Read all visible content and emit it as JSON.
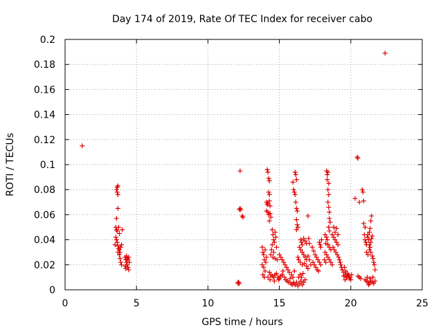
{
  "chart_data": {
    "type": "scatter",
    "title": "Day 174 of 2019, Rate Of TEC Index for receiver cabo",
    "xlabel": "GPS time / hours",
    "ylabel": "ROTI / TECUs",
    "xlim": [
      0,
      25
    ],
    "ylim": [
      0,
      0.2
    ],
    "x_ticks": [
      "0",
      "5",
      "10",
      "15",
      "20",
      "25"
    ],
    "y_ticks": [
      "0",
      "0.02",
      "0.04",
      "0.06",
      "0.08",
      "0.1",
      "0.12",
      "0.14",
      "0.16",
      "0.18",
      "0.2"
    ],
    "grid": true,
    "marker": "+",
    "color": "#e00000",
    "series": [
      {
        "points": [
          [
            1.2,
            0.115
          ],
          [
            3.6,
            0.08
          ],
          [
            3.65,
            0.082
          ],
          [
            3.7,
            0.083
          ],
          [
            3.65,
            0.078
          ],
          [
            3.7,
            0.076
          ],
          [
            3.7,
            0.065
          ],
          [
            3.6,
            0.057
          ],
          [
            3.55,
            0.05
          ],
          [
            3.6,
            0.048
          ],
          [
            3.65,
            0.047
          ],
          [
            3.55,
            0.042
          ],
          [
            3.6,
            0.04
          ],
          [
            3.65,
            0.038
          ],
          [
            3.5,
            0.036
          ],
          [
            3.7,
            0.035
          ],
          [
            3.75,
            0.033
          ],
          [
            3.8,
            0.032
          ],
          [
            3.7,
            0.03
          ],
          [
            3.8,
            0.028
          ],
          [
            3.85,
            0.03
          ],
          [
            3.9,
            0.034
          ],
          [
            3.95,
            0.036
          ],
          [
            4.0,
            0.048
          ],
          [
            3.85,
            0.025
          ],
          [
            3.9,
            0.022
          ],
          [
            3.95,
            0.02
          ],
          [
            3.75,
            0.05
          ],
          [
            3.8,
            0.045
          ],
          [
            4.2,
            0.026
          ],
          [
            4.25,
            0.024
          ],
          [
            4.3,
            0.022
          ],
          [
            4.35,
            0.02
          ],
          [
            4.4,
            0.018
          ],
          [
            4.45,
            0.016
          ],
          [
            4.5,
            0.022
          ],
          [
            4.4,
            0.024
          ],
          [
            4.3,
            0.027
          ],
          [
            4.2,
            0.019
          ],
          [
            4.25,
            0.017
          ],
          [
            4.35,
            0.025
          ],
          [
            4.45,
            0.026
          ],
          [
            12.1,
            0.005
          ],
          [
            12.15,
            0.006
          ],
          [
            12.2,
            0.005
          ],
          [
            12.1,
            0.006
          ],
          [
            12.2,
            0.064
          ],
          [
            12.25,
            0.065
          ],
          [
            12.3,
            0.064
          ],
          [
            12.25,
            0.095
          ],
          [
            12.4,
            0.059
          ],
          [
            12.45,
            0.058
          ],
          [
            13.8,
            0.034
          ],
          [
            13.85,
            0.03
          ],
          [
            13.9,
            0.028
          ],
          [
            13.95,
            0.024
          ],
          [
            13.8,
            0.02
          ],
          [
            13.9,
            0.018
          ],
          [
            14.0,
            0.015
          ],
          [
            14.05,
            0.022
          ],
          [
            14.1,
            0.026
          ],
          [
            14.0,
            0.032
          ],
          [
            13.85,
            0.012
          ],
          [
            13.95,
            0.01
          ],
          [
            14.15,
            0.096
          ],
          [
            14.2,
            0.094
          ],
          [
            14.25,
            0.089
          ],
          [
            14.3,
            0.087
          ],
          [
            14.25,
            0.078
          ],
          [
            14.3,
            0.076
          ],
          [
            14.1,
            0.07
          ],
          [
            14.15,
            0.068
          ],
          [
            14.2,
            0.069
          ],
          [
            14.3,
            0.071
          ],
          [
            14.35,
            0.067
          ],
          [
            14.1,
            0.063
          ],
          [
            14.2,
            0.062
          ],
          [
            14.25,
            0.06
          ],
          [
            14.35,
            0.061
          ],
          [
            14.4,
            0.058
          ],
          [
            14.3,
            0.055
          ],
          [
            14.5,
            0.048
          ],
          [
            14.55,
            0.044
          ],
          [
            14.6,
            0.04
          ],
          [
            14.5,
            0.036
          ],
          [
            14.65,
            0.038
          ],
          [
            14.7,
            0.046
          ],
          [
            14.75,
            0.042
          ],
          [
            14.45,
            0.032
          ],
          [
            14.6,
            0.03
          ],
          [
            14.8,
            0.034
          ],
          [
            14.4,
            0.028
          ],
          [
            14.55,
            0.026
          ],
          [
            14.7,
            0.025
          ],
          [
            14.85,
            0.024
          ],
          [
            14.3,
            0.014
          ],
          [
            14.4,
            0.012
          ],
          [
            14.5,
            0.011
          ],
          [
            14.6,
            0.01
          ],
          [
            14.7,
            0.012
          ],
          [
            14.8,
            0.013
          ],
          [
            14.9,
            0.01
          ],
          [
            15.0,
            0.009
          ],
          [
            15.1,
            0.011
          ],
          [
            15.2,
            0.012
          ],
          [
            14.2,
            0.01
          ],
          [
            14.35,
            0.008
          ],
          [
            14.65,
            0.007
          ],
          [
            14.95,
            0.008
          ],
          [
            15.0,
            0.028
          ],
          [
            15.1,
            0.026
          ],
          [
            15.2,
            0.024
          ],
          [
            15.3,
            0.022
          ],
          [
            15.4,
            0.02
          ],
          [
            15.5,
            0.018
          ],
          [
            15.6,
            0.016
          ],
          [
            15.7,
            0.014
          ],
          [
            15.35,
            0.01
          ],
          [
            15.45,
            0.008
          ],
          [
            15.55,
            0.007
          ],
          [
            15.65,
            0.006
          ],
          [
            15.75,
            0.009
          ],
          [
            15.85,
            0.012
          ],
          [
            15.25,
            0.015
          ],
          [
            15.8,
            0.005
          ],
          [
            15.9,
            0.004
          ],
          [
            16.0,
            0.006
          ],
          [
            15.95,
            0.01
          ],
          [
            16.05,
            0.015
          ],
          [
            15.95,
            0.086
          ],
          [
            16.0,
            0.08
          ],
          [
            16.05,
            0.078
          ],
          [
            16.1,
            0.094
          ],
          [
            16.15,
            0.092
          ],
          [
            16.2,
            0.088
          ],
          [
            16.1,
            0.076
          ],
          [
            16.15,
            0.07
          ],
          [
            16.2,
            0.065
          ],
          [
            16.25,
            0.063
          ],
          [
            16.2,
            0.056
          ],
          [
            16.25,
            0.052
          ],
          [
            16.3,
            0.05
          ],
          [
            16.2,
            0.048
          ],
          [
            16.0,
            0.005
          ],
          [
            16.1,
            0.004
          ],
          [
            16.2,
            0.006
          ],
          [
            16.3,
            0.003
          ],
          [
            16.4,
            0.005
          ],
          [
            16.5,
            0.007
          ],
          [
            16.6,
            0.004
          ],
          [
            16.7,
            0.006
          ],
          [
            16.8,
            0.008
          ],
          [
            16.35,
            0.01
          ],
          [
            16.45,
            0.012
          ],
          [
            16.55,
            0.01
          ],
          [
            16.65,
            0.013
          ],
          [
            16.5,
            0.04
          ],
          [
            16.55,
            0.038
          ],
          [
            16.6,
            0.036
          ],
          [
            16.7,
            0.041
          ],
          [
            16.8,
            0.039
          ],
          [
            16.9,
            0.037
          ],
          [
            16.4,
            0.034
          ],
          [
            16.5,
            0.032
          ],
          [
            16.6,
            0.03
          ],
          [
            16.7,
            0.028
          ],
          [
            16.8,
            0.026
          ],
          [
            16.9,
            0.024
          ],
          [
            16.45,
            0.022
          ],
          [
            16.6,
            0.02
          ],
          [
            16.75,
            0.021
          ],
          [
            16.9,
            0.019
          ],
          [
            17.0,
            0.027
          ],
          [
            17.1,
            0.024
          ],
          [
            17.2,
            0.02
          ],
          [
            17.0,
            0.017
          ],
          [
            16.3,
            0.026
          ],
          [
            16.35,
            0.024
          ],
          [
            17.0,
            0.059
          ],
          [
            17.05,
            0.041
          ],
          [
            17.1,
            0.037
          ],
          [
            17.3,
            0.034
          ],
          [
            17.4,
            0.031
          ],
          [
            17.5,
            0.028
          ],
          [
            17.6,
            0.026
          ],
          [
            17.7,
            0.024
          ],
          [
            17.8,
            0.022
          ],
          [
            17.9,
            0.02
          ],
          [
            17.35,
            0.022
          ],
          [
            17.45,
            0.02
          ],
          [
            17.55,
            0.018
          ],
          [
            17.65,
            0.016
          ],
          [
            17.75,
            0.015
          ],
          [
            17.8,
            0.038
          ],
          [
            17.85,
            0.036
          ],
          [
            17.9,
            0.034
          ],
          [
            17.95,
            0.04
          ],
          [
            18.3,
            0.095
          ],
          [
            18.35,
            0.092
          ],
          [
            18.4,
            0.094
          ],
          [
            18.35,
            0.088
          ],
          [
            18.45,
            0.085
          ],
          [
            18.4,
            0.08
          ],
          [
            18.45,
            0.076
          ],
          [
            18.4,
            0.07
          ],
          [
            18.45,
            0.066
          ],
          [
            18.5,
            0.062
          ],
          [
            18.5,
            0.057
          ],
          [
            18.55,
            0.054
          ],
          [
            18.45,
            0.05
          ],
          [
            18.5,
            0.047
          ],
          [
            18.2,
            0.044
          ],
          [
            18.3,
            0.042
          ],
          [
            18.35,
            0.04
          ],
          [
            18.25,
            0.037
          ],
          [
            18.4,
            0.036
          ],
          [
            18.5,
            0.034
          ],
          [
            18.6,
            0.032
          ],
          [
            18.2,
            0.03
          ],
          [
            18.3,
            0.028
          ],
          [
            18.4,
            0.026
          ],
          [
            18.5,
            0.024
          ],
          [
            18.6,
            0.022
          ],
          [
            18.7,
            0.02
          ],
          [
            18.15,
            0.024
          ],
          [
            18.25,
            0.022
          ],
          [
            18.7,
            0.044
          ],
          [
            18.8,
            0.042
          ],
          [
            18.9,
            0.04
          ],
          [
            19.0,
            0.038
          ],
          [
            19.1,
            0.036
          ],
          [
            18.75,
            0.034
          ],
          [
            18.85,
            0.032
          ],
          [
            18.95,
            0.03
          ],
          [
            19.05,
            0.028
          ],
          [
            19.15,
            0.026
          ],
          [
            19.2,
            0.024
          ],
          [
            19.25,
            0.022
          ],
          [
            19.3,
            0.02
          ],
          [
            19.35,
            0.018
          ],
          [
            18.9,
            0.046
          ],
          [
            19.0,
            0.049
          ],
          [
            18.8,
            0.05
          ],
          [
            19.1,
            0.044
          ],
          [
            19.4,
            0.016
          ],
          [
            19.5,
            0.014
          ],
          [
            19.6,
            0.012
          ],
          [
            19.7,
            0.01
          ],
          [
            19.8,
            0.011
          ],
          [
            19.9,
            0.009
          ],
          [
            20.0,
            0.008
          ],
          [
            19.55,
            0.018
          ],
          [
            19.65,
            0.015
          ],
          [
            19.75,
            0.013
          ],
          [
            19.85,
            0.012
          ],
          [
            19.95,
            0.01
          ],
          [
            20.05,
            0.012
          ],
          [
            19.5,
            0.011
          ],
          [
            19.6,
            0.008
          ],
          [
            20.3,
            0.073
          ],
          [
            20.45,
            0.106
          ],
          [
            20.5,
            0.105
          ],
          [
            20.6,
            0.07
          ],
          [
            20.5,
            0.011
          ],
          [
            20.6,
            0.01
          ],
          [
            20.7,
            0.009
          ],
          [
            20.8,
            0.08
          ],
          [
            20.85,
            0.078
          ],
          [
            20.9,
            0.071
          ],
          [
            20.9,
            0.053
          ],
          [
            21.0,
            0.05
          ],
          [
            20.95,
            0.044
          ],
          [
            21.0,
            0.04
          ],
          [
            21.05,
            0.038
          ],
          [
            21.1,
            0.036
          ],
          [
            21.15,
            0.042
          ],
          [
            21.2,
            0.044
          ],
          [
            21.25,
            0.04
          ],
          [
            21.3,
            0.036
          ],
          [
            21.35,
            0.034
          ],
          [
            21.4,
            0.038
          ],
          [
            21.45,
            0.041
          ],
          [
            21.5,
            0.043
          ],
          [
            21.3,
            0.046
          ],
          [
            21.35,
            0.049
          ],
          [
            21.4,
            0.055
          ],
          [
            21.45,
            0.059
          ],
          [
            21.1,
            0.03
          ],
          [
            21.2,
            0.028
          ],
          [
            21.3,
            0.032
          ],
          [
            21.4,
            0.03
          ],
          [
            21.5,
            0.027
          ],
          [
            21.55,
            0.025
          ],
          [
            21.6,
            0.022
          ],
          [
            21.65,
            0.02
          ],
          [
            21.7,
            0.016
          ],
          [
            21.0,
            0.008
          ],
          [
            21.1,
            0.007
          ],
          [
            21.2,
            0.006
          ],
          [
            21.3,
            0.005
          ],
          [
            21.4,
            0.007
          ],
          [
            21.5,
            0.006
          ],
          [
            21.6,
            0.005
          ],
          [
            21.7,
            0.007
          ],
          [
            21.15,
            0.01
          ],
          [
            21.35,
            0.009
          ],
          [
            21.55,
            0.01
          ],
          [
            21.25,
            0.004
          ],
          [
            22.4,
            0.189
          ]
        ]
      }
    ]
  }
}
